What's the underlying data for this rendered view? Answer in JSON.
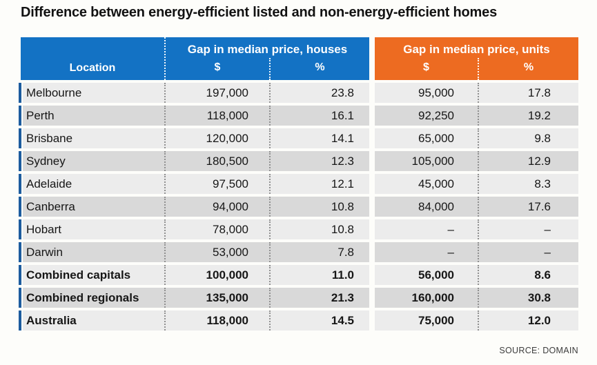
{
  "title": "Difference between energy-efficient listed and non-energy-efficient homes",
  "header": {
    "location_label": "Location",
    "houses_group": "Gap in median price, houses",
    "units_group": "Gap in median price, units",
    "dollar_label": "$",
    "percent_label": "%"
  },
  "source": "SOURCE: DOMAIN",
  "colors": {
    "blue": "#1372c4",
    "orange": "#ed6b21",
    "marker_blue": "#1d5c9e",
    "row_light": "#ececec",
    "row_dark": "#d9d9d9",
    "page_bg": "#fdfdfa"
  },
  "chart_data": {
    "type": "table",
    "title": "Difference between energy-efficient listed and non-energy-efficient homes",
    "column_groups": [
      "Location",
      "Gap in median price, houses",
      "Gap in median price, units"
    ],
    "columns": [
      "Location",
      "Houses $",
      "Houses %",
      "Units $",
      "Units %"
    ],
    "rows": [
      {
        "location": "Melbourne",
        "houses_dollar": "197,000",
        "houses_pct": "23.8",
        "units_dollar": "95,000",
        "units_pct": "17.8",
        "bold": false
      },
      {
        "location": "Perth",
        "houses_dollar": "118,000",
        "houses_pct": "16.1",
        "units_dollar": "92,250",
        "units_pct": "19.2",
        "bold": false
      },
      {
        "location": "Brisbane",
        "houses_dollar": "120,000",
        "houses_pct": "14.1",
        "units_dollar": "65,000",
        "units_pct": "9.8",
        "bold": false
      },
      {
        "location": "Sydney",
        "houses_dollar": "180,500",
        "houses_pct": "12.3",
        "units_dollar": "105,000",
        "units_pct": "12.9",
        "bold": false
      },
      {
        "location": "Adelaide",
        "houses_dollar": "97,500",
        "houses_pct": "12.1",
        "units_dollar": "45,000",
        "units_pct": "8.3",
        "bold": false
      },
      {
        "location": "Canberra",
        "houses_dollar": "94,000",
        "houses_pct": "10.8",
        "units_dollar": "84,000",
        "units_pct": "17.6",
        "bold": false
      },
      {
        "location": "Hobart",
        "houses_dollar": "78,000",
        "houses_pct": "10.8",
        "units_dollar": "–",
        "units_pct": "–",
        "bold": false
      },
      {
        "location": "Darwin",
        "houses_dollar": "53,000",
        "houses_pct": "7.8",
        "units_dollar": "–",
        "units_pct": "–",
        "bold": false
      },
      {
        "location": "Combined capitals",
        "houses_dollar": "100,000",
        "houses_pct": "11.0",
        "units_dollar": "56,000",
        "units_pct": "8.6",
        "bold": true
      },
      {
        "location": "Combined regionals",
        "houses_dollar": "135,000",
        "houses_pct": "21.3",
        "units_dollar": "160,000",
        "units_pct": "30.8",
        "bold": true
      },
      {
        "location": "Australia",
        "houses_dollar": "118,000",
        "houses_pct": "14.5",
        "units_dollar": "75,000",
        "units_pct": "12.0",
        "bold": true
      }
    ]
  }
}
